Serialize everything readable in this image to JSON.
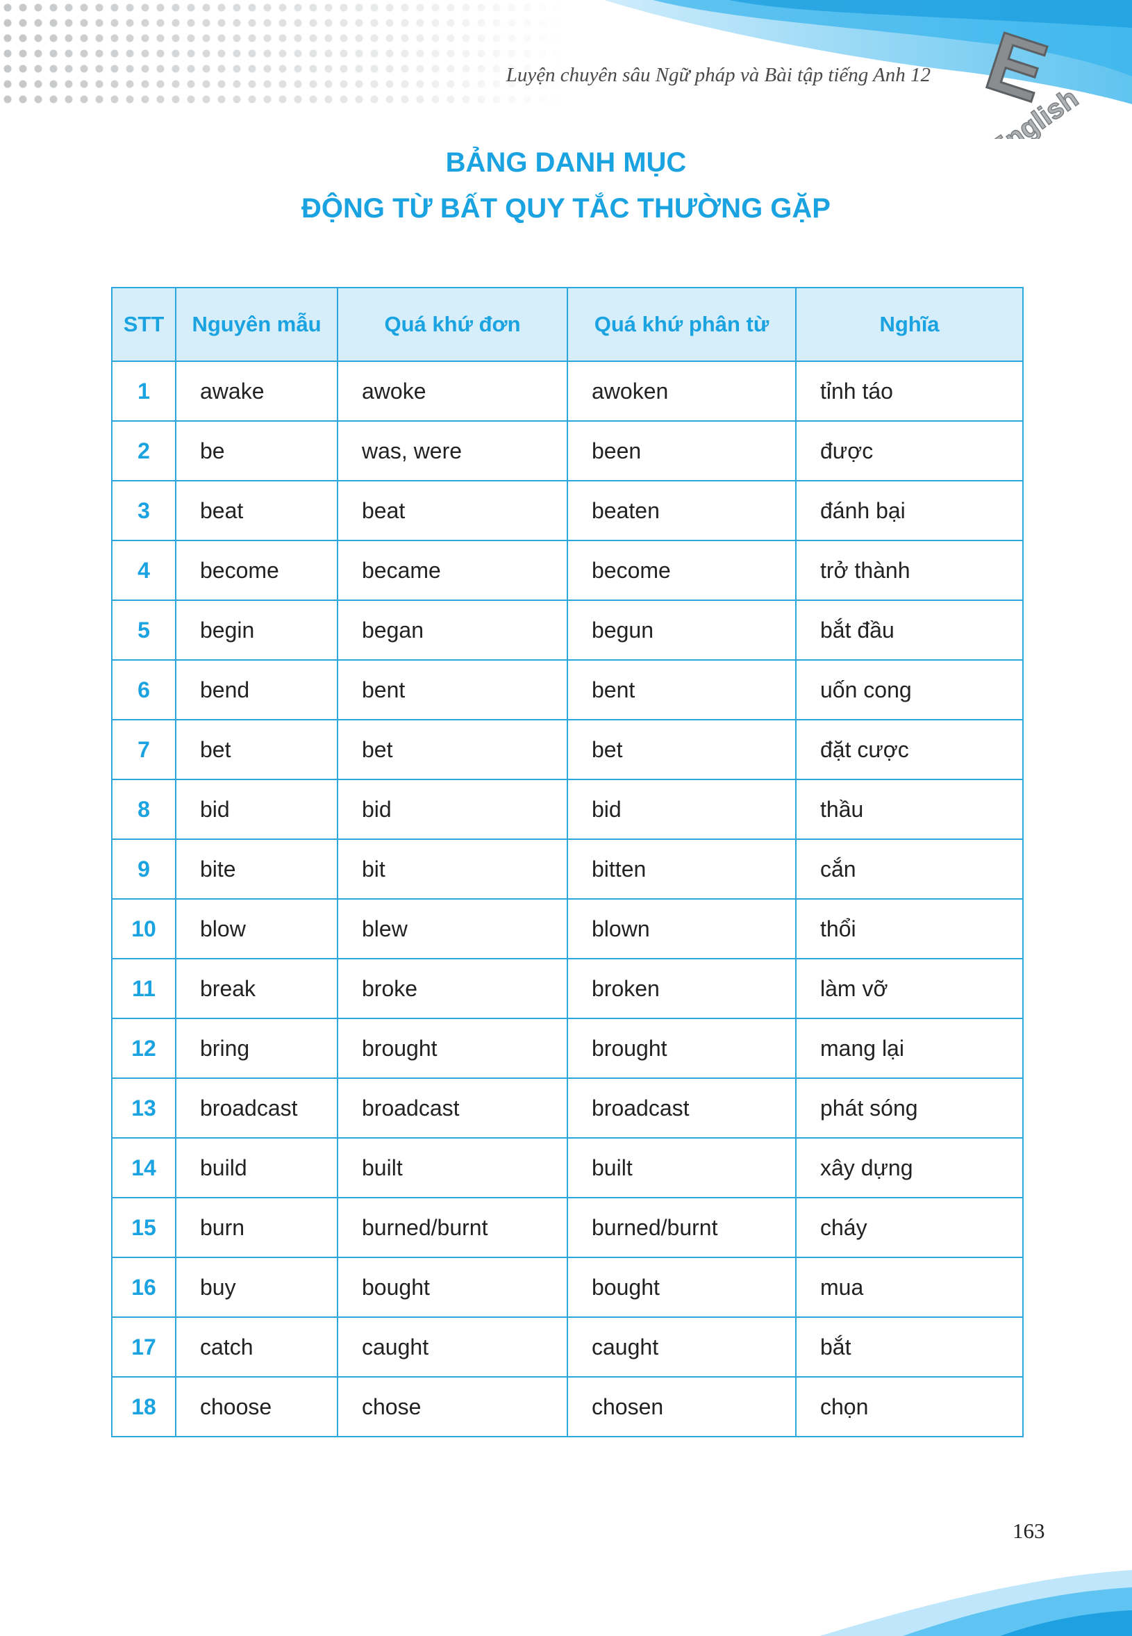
{
  "header": {
    "book_title": "Luyện chuyên sâu Ngữ pháp và Bài tập tiếng Anh 12",
    "logo_letter": "E",
    "logo_word": "English"
  },
  "title": {
    "line1": "BẢNG DANH MỤC",
    "line2": "ĐỘNG TỪ BẤT QUY TẮC THƯỜNG GẶP"
  },
  "colors": {
    "accent": "#1aa3e0",
    "header_bg": "#d5eefa"
  },
  "table": {
    "columns": [
      "STT",
      "Nguyên mẫu",
      "Quá khứ đơn",
      "Quá khứ phân từ",
      "Nghĩa"
    ],
    "rows": [
      [
        "1",
        "awake",
        "awoke",
        "awoken",
        "tỉnh táo"
      ],
      [
        "2",
        "be",
        "was, were",
        "been",
        "được"
      ],
      [
        "3",
        "beat",
        "beat",
        "beaten",
        "đánh bại"
      ],
      [
        "4",
        "become",
        "became",
        "become",
        "trở thành"
      ],
      [
        "5",
        "begin",
        "began",
        "begun",
        "bắt đầu"
      ],
      [
        "6",
        "bend",
        "bent",
        "bent",
        "uốn cong"
      ],
      [
        "7",
        "bet",
        "bet",
        "bet",
        "đặt cược"
      ],
      [
        "8",
        "bid",
        "bid",
        "bid",
        "thầu"
      ],
      [
        "9",
        "bite",
        "bit",
        "bitten",
        "cắn"
      ],
      [
        "10",
        "blow",
        "blew",
        "blown",
        "thổi"
      ],
      [
        "11",
        "break",
        "broke",
        "broken",
        "làm vỡ"
      ],
      [
        "12",
        "bring",
        "brought",
        "brought",
        "mang lại"
      ],
      [
        "13",
        "broadcast",
        "broadcast",
        "broadcast",
        "phát sóng"
      ],
      [
        "14",
        "build",
        "built",
        "built",
        "xây dựng"
      ],
      [
        "15",
        "burn",
        "burned/burnt",
        "burned/burnt",
        "cháy"
      ],
      [
        "16",
        "buy",
        "bought",
        "bought",
        "mua"
      ],
      [
        "17",
        "catch",
        "caught",
        "caught",
        "bắt"
      ],
      [
        "18",
        "choose",
        "chose",
        "chosen",
        "chọn"
      ]
    ]
  },
  "page_number": "163"
}
